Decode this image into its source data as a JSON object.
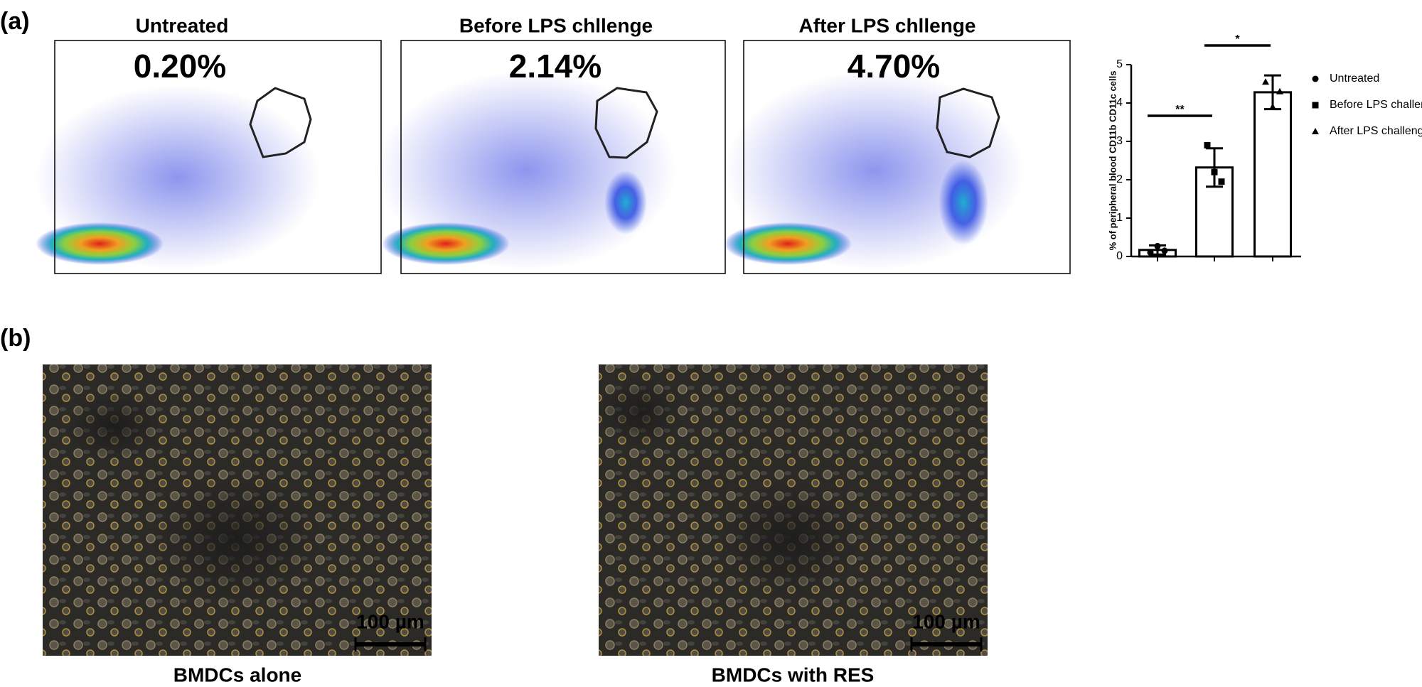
{
  "panel_a": {
    "label": "(a)",
    "flow_plots": [
      {
        "title": "Untreated",
        "percent": "0.20%"
      },
      {
        "title": "Before LPS chllenge",
        "percent": "2.14%"
      },
      {
        "title": "After LPS chllenge",
        "percent": "4.70%"
      }
    ]
  },
  "chart_data": {
    "type": "bar",
    "y_label": "% of peripheral blood CD11b CD11c cells",
    "categories": [
      "Untreated",
      "Before LPS challenge",
      "After LPS challenge"
    ],
    "values": [
      0.17,
      2.32,
      4.28
    ],
    "errors": [
      0.12,
      0.5,
      0.44
    ],
    "points": [
      [
        0.1,
        0.27,
        0.15
      ],
      [
        2.9,
        2.2,
        1.95
      ],
      [
        4.55,
        3.9,
        4.3
      ]
    ],
    "color": "#ffffff",
    "ylim": [
      0,
      5
    ],
    "yticks": [
      0,
      1,
      2,
      3,
      4,
      5
    ],
    "significance": [
      {
        "label": "**",
        "from": 0,
        "to": 1
      },
      {
        "label": "*",
        "from": 1,
        "to": 2
      }
    ]
  },
  "panel_b": {
    "label": "(b)",
    "images": [
      {
        "caption": "BMDCs alone",
        "scale_bar": "100 µm"
      },
      {
        "caption": "BMDCs with RES",
        "scale_bar": "100 µm"
      }
    ]
  }
}
